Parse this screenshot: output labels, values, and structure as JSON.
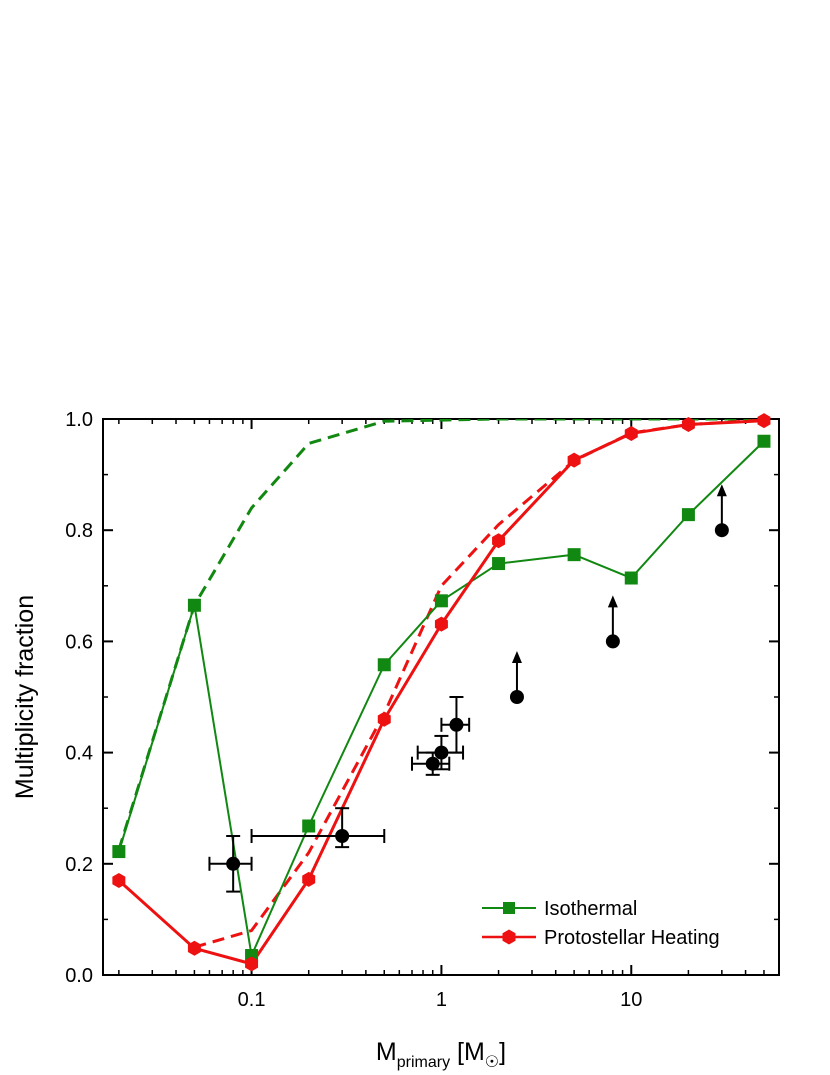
{
  "chart_data": {
    "type": "line",
    "xlabel": {
      "main": "M",
      "sub": "primary",
      "unit_pre": " [M",
      "unit_sym": "☉",
      "unit_post": "]"
    },
    "ylabel": "Multiplicity fraction",
    "xscale": "log",
    "xlim": [
      0.0165,
      60
    ],
    "ylim": [
      0,
      1.0
    ],
    "x_ticks": [
      {
        "value": 0.1,
        "label": "0.1"
      },
      {
        "value": 1,
        "label": "1"
      },
      {
        "value": 10,
        "label": "10"
      }
    ],
    "y_ticks": [
      {
        "value": 0.0,
        "label": "0.0"
      },
      {
        "value": 0.2,
        "label": "0.2"
      },
      {
        "value": 0.4,
        "label": "0.4"
      },
      {
        "value": 0.6,
        "label": "0.6"
      },
      {
        "value": 0.8,
        "label": "0.8"
      },
      {
        "value": 1.0,
        "label": "1.0"
      }
    ],
    "grid": false,
    "legend": {
      "position": "bottom-right"
    },
    "series": [
      {
        "name": "Isothermal",
        "color": "#118811",
        "marker": "square",
        "line": "solid",
        "in_legend": true,
        "x": [
          0.02,
          0.05,
          0.1,
          0.2,
          0.5,
          1,
          2,
          5,
          10,
          20,
          50
        ],
        "y": [
          0.222,
          0.665,
          0.035,
          0.268,
          0.558,
          0.673,
          0.74,
          0.756,
          0.714,
          0.828,
          0.96
        ]
      },
      {
        "name": "Protostellar Heating",
        "color": "#ee1111",
        "marker": "hexagon",
        "line": "solid",
        "in_legend": true,
        "x": [
          0.02,
          0.05,
          0.1,
          0.2,
          0.5,
          1,
          2,
          5,
          10,
          20,
          50
        ],
        "y": [
          0.17,
          0.048,
          0.02,
          0.172,
          0.46,
          0.631,
          0.781,
          0.926,
          0.974,
          0.99,
          0.997
        ]
      },
      {
        "color": "#118811",
        "marker": "none",
        "line": "dashed",
        "in_legend": false,
        "x": [
          0.02,
          0.05,
          0.1,
          0.2,
          0.5,
          1,
          2,
          5,
          10,
          20,
          50
        ],
        "y": [
          0.225,
          0.665,
          0.84,
          0.956,
          0.996,
          0.998,
          1.0,
          1.0,
          1.0,
          1.0,
          1.0
        ]
      },
      {
        "color": "#ee1111",
        "marker": "none",
        "line": "dashed",
        "in_legend": false,
        "x": [
          0.05,
          0.1,
          0.2,
          0.5,
          1,
          2,
          5,
          10,
          20,
          50
        ],
        "y": [
          0.05,
          0.08,
          0.22,
          0.47,
          0.7,
          0.81,
          0.925,
          0.975,
          0.99,
          0.998
        ]
      }
    ],
    "observations": {
      "color": "#000000",
      "marker": "circle",
      "points": [
        {
          "x": 0.08,
          "y": 0.2,
          "x_err": [
            0.06,
            0.1
          ],
          "y_err": [
            0.15,
            0.25
          ],
          "lower_limit": false
        },
        {
          "x": 0.3,
          "y": 0.25,
          "x_err": [
            0.1,
            0.5
          ],
          "y_err": [
            0.23,
            0.3
          ],
          "lower_limit": false
        },
        {
          "x": 0.9,
          "y": 0.38,
          "x_err": [
            0.7,
            1.1
          ],
          "y_err": [
            0.36,
            0.4
          ],
          "lower_limit": false
        },
        {
          "x": 1.0,
          "y": 0.4,
          "x_err": [
            0.75,
            1.3
          ],
          "y_err": [
            0.37,
            0.43
          ],
          "lower_limit": false
        },
        {
          "x": 1.2,
          "y": 0.45,
          "x_err": [
            1.0,
            1.4
          ],
          "y_err": [
            0.4,
            0.5
          ],
          "lower_limit": false
        },
        {
          "x": 2.5,
          "y": 0.5,
          "lower_limit": true
        },
        {
          "x": 8,
          "y": 0.6,
          "lower_limit": true
        },
        {
          "x": 30,
          "y": 0.8,
          "lower_limit": true
        }
      ]
    }
  }
}
